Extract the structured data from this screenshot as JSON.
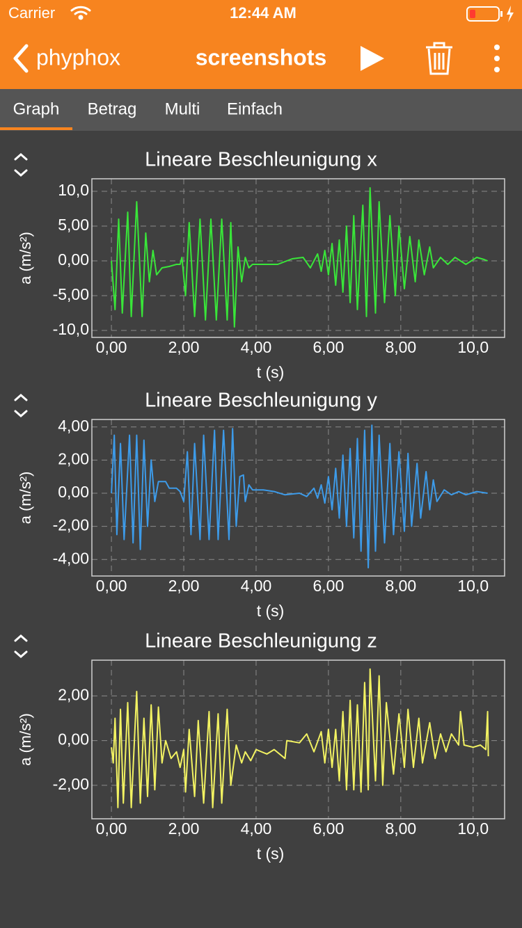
{
  "status_bar": {
    "carrier": "Carrier",
    "time": "12:44 AM"
  },
  "nav": {
    "back": "phyphox",
    "title": "screenshots"
  },
  "tabs": [
    "Graph",
    "Betrag",
    "Multi",
    "Einfach"
  ],
  "chart_data": [
    {
      "type": "line",
      "title": "Lineare Beschleunigung x",
      "xlabel": "t (s)",
      "ylabel": "a (m/s²)",
      "color": "#39e639",
      "grid": true,
      "xlim": [
        -0.54,
        10.87
      ],
      "ylim": [
        -11,
        11.8
      ],
      "xticks": [
        {
          "value": 0,
          "label": "0,00"
        },
        {
          "value": 2,
          "label": "2,00"
        },
        {
          "value": 4,
          "label": "4,00"
        },
        {
          "value": 6,
          "label": "6,00"
        },
        {
          "value": 8,
          "label": "8,00"
        },
        {
          "value": 10,
          "label": "10,0"
        }
      ],
      "yticks": [
        {
          "value": 10,
          "label": "10,0"
        },
        {
          "value": 5,
          "label": "5,00"
        },
        {
          "value": 0,
          "label": "0,00"
        },
        {
          "value": -5,
          "label": "-5,00"
        },
        {
          "value": -10,
          "label": "-10,0"
        }
      ],
      "x": [
        0,
        0.1,
        0.2,
        0.3,
        0.45,
        0.55,
        0.7,
        0.85,
        0.95,
        1.05,
        1.15,
        1.25,
        1.4,
        1.6,
        1.8,
        1.9,
        1.95,
        2.05,
        2.15,
        2.3,
        2.45,
        2.6,
        2.75,
        2.9,
        3.05,
        3.2,
        3.3,
        3.4,
        3.5,
        3.6,
        3.7,
        3.8,
        3.9,
        4.2,
        4.6,
        5.0,
        5.3,
        5.5,
        5.7,
        5.8,
        5.9,
        6.0,
        6.1,
        6.2,
        6.3,
        6.4,
        6.5,
        6.6,
        6.7,
        6.8,
        6.95,
        7.05,
        7.15,
        7.3,
        7.4,
        7.55,
        7.7,
        7.85,
        7.95,
        8.1,
        8.25,
        8.4,
        8.5,
        8.65,
        8.8,
        8.9,
        9.1,
        9.3,
        9.5,
        9.8,
        10.1,
        10.3,
        10.4
      ],
      "values": [
        0,
        -7,
        6,
        -7.5,
        7,
        -8,
        8.5,
        -8,
        4,
        -3,
        1.5,
        -2,
        -1,
        -0.8,
        -0.5,
        -0.5,
        0.5,
        -5,
        5.5,
        -8,
        6,
        -8.5,
        6,
        -8.5,
        6,
        -8.5,
        5.5,
        -9.5,
        2,
        -3,
        0.5,
        -1,
        -0.5,
        -0.5,
        -0.5,
        0.3,
        0.5,
        -1,
        1,
        -1.5,
        1.5,
        -2,
        2.5,
        -3.5,
        3,
        -4.5,
        5,
        -6,
        6.5,
        -7,
        8,
        -8,
        10.5,
        -7.5,
        8.5,
        -6,
        6.5,
        -5,
        5,
        -4,
        3.5,
        -3,
        3,
        -2,
        2,
        -1,
        0.5,
        -0.5,
        0.5,
        -0.5,
        0.5,
        0.2,
        0
      ]
    },
    {
      "type": "line",
      "title": "Lineare Beschleunigung y",
      "xlabel": "t (s)",
      "ylabel": "a (m/s²)",
      "color": "#3d9be9",
      "grid": true,
      "xlim": [
        -0.54,
        10.87
      ],
      "ylim": [
        -5,
        4.45
      ],
      "xticks": [
        {
          "value": 0,
          "label": "0,00"
        },
        {
          "value": 2,
          "label": "2,00"
        },
        {
          "value": 4,
          "label": "4,00"
        },
        {
          "value": 6,
          "label": "6,00"
        },
        {
          "value": 8,
          "label": "8,00"
        },
        {
          "value": 10,
          "label": "10,0"
        }
      ],
      "yticks": [
        {
          "value": 4,
          "label": "4,00"
        },
        {
          "value": 2,
          "label": "2,00"
        },
        {
          "value": 0,
          "label": "0,00"
        },
        {
          "value": -2,
          "label": "-2,00"
        },
        {
          "value": -4,
          "label": "-4,00"
        }
      ],
      "x": [
        0,
        0.08,
        0.15,
        0.25,
        0.35,
        0.5,
        0.6,
        0.7,
        0.8,
        0.9,
        1.0,
        1.1,
        1.2,
        1.3,
        1.5,
        1.6,
        1.8,
        1.9,
        2.0,
        2.1,
        2.2,
        2.3,
        2.45,
        2.55,
        2.7,
        2.85,
        2.95,
        3.1,
        3.25,
        3.35,
        3.45,
        3.55,
        3.65,
        3.7,
        3.8,
        3.9,
        4.2,
        4.5,
        4.8,
        5.2,
        5.4,
        5.6,
        5.7,
        5.8,
        5.9,
        6.0,
        6.1,
        6.2,
        6.3,
        6.4,
        6.5,
        6.6,
        6.7,
        6.8,
        6.9,
        7.0,
        7.1,
        7.2,
        7.3,
        7.4,
        7.55,
        7.7,
        7.8,
        7.95,
        8.1,
        8.2,
        8.3,
        8.45,
        8.55,
        8.7,
        8.8,
        8.9,
        9.0,
        9.2,
        9.4,
        9.6,
        9.8,
        10.1,
        10.4
      ],
      "values": [
        0,
        3.5,
        -2.5,
        3,
        -2.8,
        3.5,
        -3,
        3.5,
        -3.4,
        3.2,
        -2,
        2,
        -0.5,
        0.7,
        0.7,
        0.3,
        0.3,
        0.1,
        -0.5,
        2.5,
        -2.5,
        3,
        -2.8,
        3.5,
        -2.8,
        3.8,
        -2.8,
        3.8,
        -2.8,
        3.9,
        -2,
        1,
        1.1,
        -0.5,
        0.5,
        0.2,
        0.2,
        0.1,
        -0.1,
        0,
        -0.2,
        0.3,
        -0.3,
        0.5,
        -0.6,
        1,
        -1,
        1.5,
        -1.5,
        2.3,
        -2,
        2.7,
        -2.7,
        3.3,
        -3.5,
        3.8,
        -4.5,
        4.1,
        -3.5,
        3.5,
        -3,
        3,
        -2.5,
        2.5,
        -2.3,
        2.4,
        -2,
        1.8,
        -1.5,
        1.3,
        -1,
        0.8,
        -0.5,
        0.2,
        -0.1,
        0.1,
        -0.1,
        0.1,
        0
      ]
    },
    {
      "type": "line",
      "title": "Lineare Beschleunigung z",
      "xlabel": "t (s)",
      "ylabel": "a (m/s²)",
      "color": "#f2f262",
      "grid": true,
      "xlim": [
        -0.54,
        10.87
      ],
      "ylim": [
        -3.5,
        3.6
      ],
      "xticks": [
        {
          "value": 0,
          "label": "0,00"
        },
        {
          "value": 2,
          "label": "2,00"
        },
        {
          "value": 4,
          "label": "4,00"
        },
        {
          "value": 6,
          "label": "6,00"
        },
        {
          "value": 8,
          "label": "8,00"
        },
        {
          "value": 10,
          "label": "10,0"
        }
      ],
      "yticks": [
        {
          "value": 2,
          "label": "2,00"
        },
        {
          "value": 0,
          "label": "0,00"
        },
        {
          "value": -2,
          "label": "-2,00"
        }
      ],
      "x": [
        0,
        0.05,
        0.1,
        0.18,
        0.25,
        0.33,
        0.45,
        0.55,
        0.7,
        0.8,
        0.9,
        1.0,
        1.1,
        1.2,
        1.3,
        1.4,
        1.5,
        1.65,
        1.8,
        1.9,
        2.0,
        2.05,
        2.15,
        2.3,
        2.4,
        2.55,
        2.7,
        2.8,
        2.95,
        3.05,
        3.2,
        3.3,
        3.45,
        3.6,
        3.7,
        3.85,
        4.0,
        4.3,
        4.5,
        4.8,
        4.85,
        5.2,
        5.4,
        5.6,
        5.8,
        5.9,
        6.0,
        6.1,
        6.2,
        6.3,
        6.4,
        6.5,
        6.6,
        6.7,
        6.8,
        6.9,
        7.0,
        7.1,
        7.15,
        7.3,
        7.4,
        7.5,
        7.6,
        7.8,
        7.95,
        8.1,
        8.2,
        8.35,
        8.5,
        8.6,
        8.8,
        8.95,
        9.1,
        9.25,
        9.4,
        9.6,
        9.65,
        9.75,
        10.0,
        10.2,
        10.35,
        10.4,
        10.42
      ],
      "values": [
        -0.3,
        -1,
        1,
        -3,
        1.4,
        -2.8,
        1.7,
        -3,
        2.2,
        -2.8,
        1,
        -2.5,
        1.6,
        -2.2,
        1.5,
        -1,
        0,
        -0.8,
        -0.5,
        -1.2,
        -0.4,
        -2.3,
        0.5,
        -2.5,
        0.9,
        -2.8,
        1.3,
        -3,
        1.2,
        -2.8,
        1.4,
        -2,
        -0.2,
        -1,
        -0.5,
        -0.9,
        -0.4,
        -0.6,
        -0.4,
        -0.8,
        0,
        -0.1,
        0.3,
        -0.5,
        0.4,
        -1,
        0.5,
        -1.2,
        0.5,
        -1.8,
        1.3,
        -2.2,
        1.8,
        -2.2,
        1.6,
        -2.3,
        2.6,
        -2.2,
        3.2,
        -1.8,
        2.9,
        -2,
        1.7,
        -1.5,
        1.2,
        -1.2,
        1.4,
        -1.2,
        1,
        -1,
        0.8,
        -0.8,
        0.3,
        -0.5,
        0.3,
        -0.2,
        1.3,
        -0.2,
        -0.3,
        -0.2,
        -0.4,
        1.3,
        -0.7
      ]
    }
  ]
}
